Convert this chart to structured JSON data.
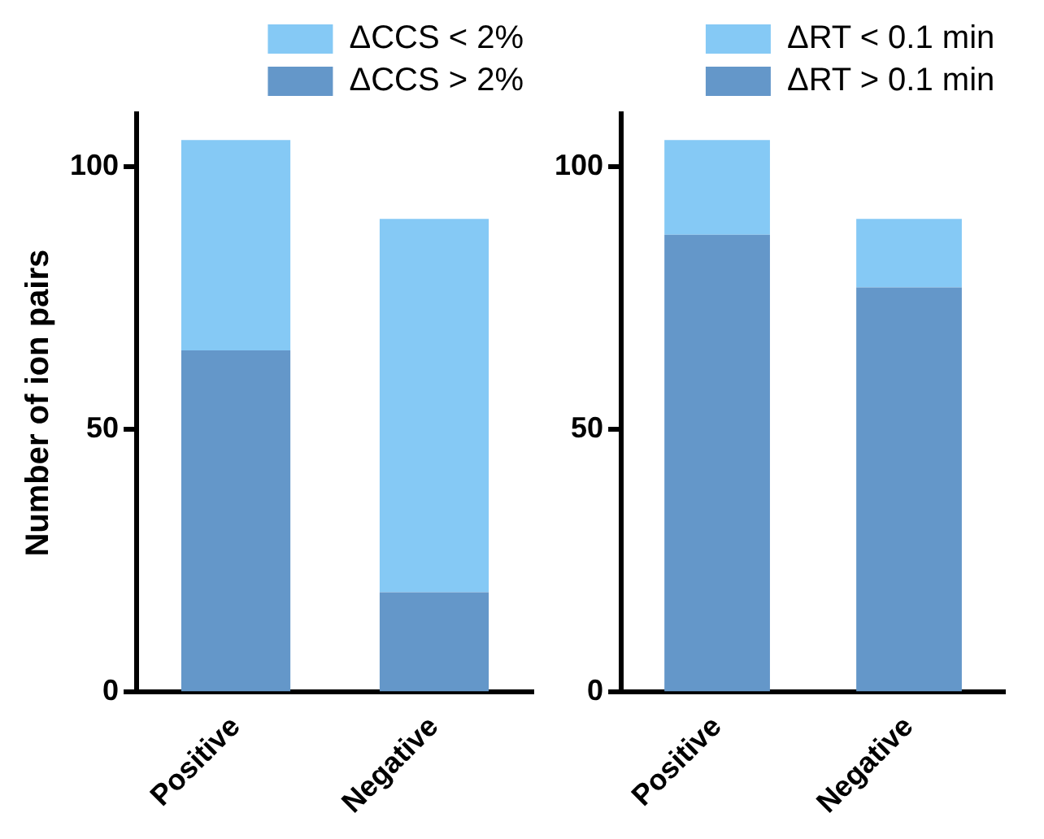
{
  "chart_data": [
    {
      "type": "bar",
      "stacked": true,
      "ylabel": "Number of ion pairs",
      "categories": [
        "Positive",
        "Negative"
      ],
      "ylim": [
        0,
        110
      ],
      "yticks": [
        0,
        50,
        100
      ],
      "legend": "top",
      "grid": false,
      "series": [
        {
          "name": "ΔCCS > 2%",
          "color": "#6497c9",
          "values": [
            65,
            19
          ]
        },
        {
          "name": "ΔCCS < 2%",
          "color": "#85c9f5",
          "values": [
            40,
            71
          ]
        }
      ]
    },
    {
      "type": "bar",
      "stacked": true,
      "categories": [
        "Positive",
        "Negative"
      ],
      "ylim": [
        0,
        110
      ],
      "yticks": [
        0,
        50,
        100
      ],
      "legend": "top",
      "grid": false,
      "series": [
        {
          "name": "ΔRT > 0.1 min",
          "color": "#6497c9",
          "values": [
            87,
            77
          ]
        },
        {
          "name": "ΔRT < 0.1 min",
          "color": "#85c9f5",
          "values": [
            18,
            13
          ]
        }
      ]
    }
  ]
}
